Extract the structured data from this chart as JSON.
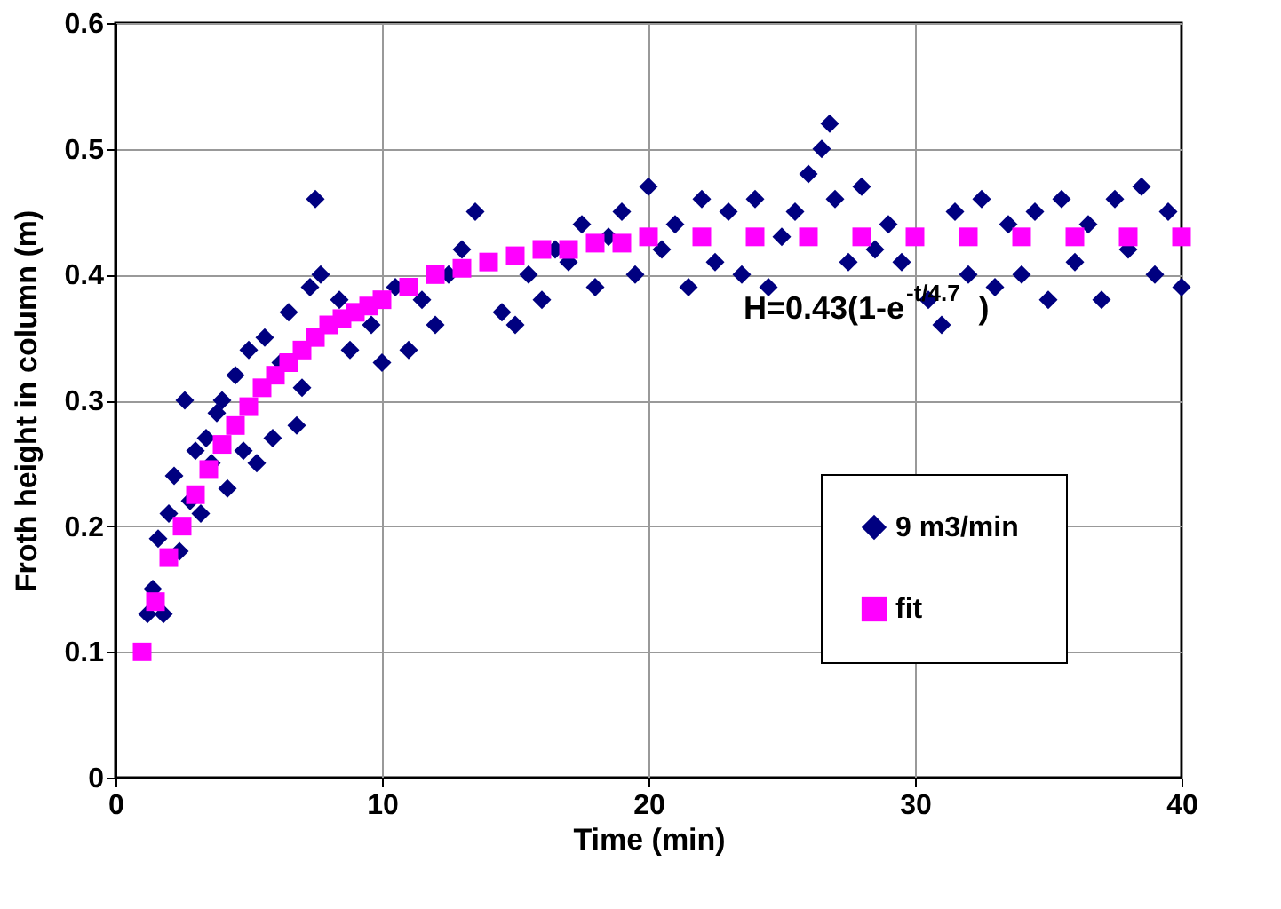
{
  "chart_data": {
    "type": "scatter",
    "xlabel": "Time (min)",
    "ylabel": "Froth height in column (m)",
    "xlim": [
      0,
      40
    ],
    "xticks": [
      0,
      10,
      20,
      30,
      40
    ],
    "ylim": [
      0,
      0.6
    ],
    "yticks": [
      {
        "value": 0,
        "label": "0"
      },
      0.1,
      0.2,
      0.3,
      0.4,
      0.5,
      0.6
    ],
    "grid": true,
    "legend": "bottom right",
    "annotations": [
      "H=0.43(1-e$^{-t/4.7}$)"
    ],
    "series": [
      {
        "name": "9  m3/min",
        "color": "#000080",
        "marker": "diamond",
        "x": [
          1.2,
          1.4,
          1.6,
          1.8,
          2.0,
          2.2,
          2.4,
          2.6,
          2.8,
          3.0,
          3.2,
          3.4,
          3.6,
          3.8,
          4.0,
          4.2,
          4.5,
          4.8,
          5.0,
          5.3,
          5.6,
          5.9,
          6.2,
          6.5,
          6.8,
          7.0,
          7.3,
          7.5,
          7.7,
          8.4,
          8.8,
          9.6,
          10.0,
          10.5,
          11.0,
          11.5,
          12.0,
          12.5,
          13.0,
          13.5,
          14.5,
          15.0,
          15.5,
          16.0,
          16.5,
          17.0,
          17.5,
          18.0,
          18.5,
          19.0,
          19.5,
          20.0,
          20.5,
          21.0,
          21.5,
          22.0,
          22.5,
          23.0,
          23.5,
          24.0,
          24.5,
          25.0,
          25.5,
          26.0,
          26.5,
          26.8,
          27.0,
          27.5,
          28.0,
          28.5,
          29.0,
          29.5,
          30.5,
          31.0,
          31.5,
          32.0,
          32.5,
          33.0,
          33.5,
          34.0,
          34.5,
          35.0,
          35.5,
          36.0,
          36.5,
          37.0,
          37.5,
          38.0,
          38.5,
          39.0,
          39.5,
          40.0
        ],
        "values": [
          0.13,
          0.15,
          0.19,
          0.13,
          0.21,
          0.24,
          0.18,
          0.3,
          0.22,
          0.26,
          0.21,
          0.27,
          0.25,
          0.29,
          0.3,
          0.23,
          0.32,
          0.26,
          0.34,
          0.25,
          0.35,
          0.27,
          0.33,
          0.37,
          0.28,
          0.31,
          0.39,
          0.46,
          0.4,
          0.38,
          0.34,
          0.36,
          0.33,
          0.39,
          0.34,
          0.38,
          0.36,
          0.4,
          0.42,
          0.45,
          0.37,
          0.36,
          0.4,
          0.38,
          0.42,
          0.41,
          0.44,
          0.39,
          0.43,
          0.45,
          0.4,
          0.47,
          0.42,
          0.44,
          0.39,
          0.46,
          0.41,
          0.45,
          0.4,
          0.46,
          0.39,
          0.43,
          0.45,
          0.48,
          0.5,
          0.52,
          0.46,
          0.41,
          0.47,
          0.42,
          0.44,
          0.41,
          0.38,
          0.36,
          0.45,
          0.4,
          0.46,
          0.39,
          0.44,
          0.4,
          0.45,
          0.38,
          0.46,
          0.41,
          0.44,
          0.38,
          0.46,
          0.42,
          0.47,
          0.4,
          0.45,
          0.39
        ]
      },
      {
        "name": "fit",
        "color": "#ff00ff",
        "marker": "square",
        "x": [
          1,
          1.5,
          2,
          2.5,
          3,
          3.5,
          4,
          4.5,
          5,
          5.5,
          6,
          6.5,
          7,
          7.5,
          8,
          8.5,
          9,
          9.5,
          10,
          11,
          12,
          13,
          14,
          15,
          16,
          17,
          18,
          19,
          20,
          22,
          24,
          26,
          28,
          30,
          32,
          34,
          36,
          38,
          40
        ],
        "values": [
          0.1,
          0.14,
          0.175,
          0.2,
          0.225,
          0.245,
          0.265,
          0.28,
          0.295,
          0.31,
          0.32,
          0.33,
          0.34,
          0.35,
          0.36,
          0.365,
          0.37,
          0.375,
          0.38,
          0.39,
          0.4,
          0.405,
          0.41,
          0.415,
          0.42,
          0.42,
          0.425,
          0.425,
          0.43,
          0.43,
          0.43,
          0.43,
          0.43,
          0.43,
          0.43,
          0.43,
          0.43,
          0.43,
          0.43
        ]
      }
    ]
  }
}
